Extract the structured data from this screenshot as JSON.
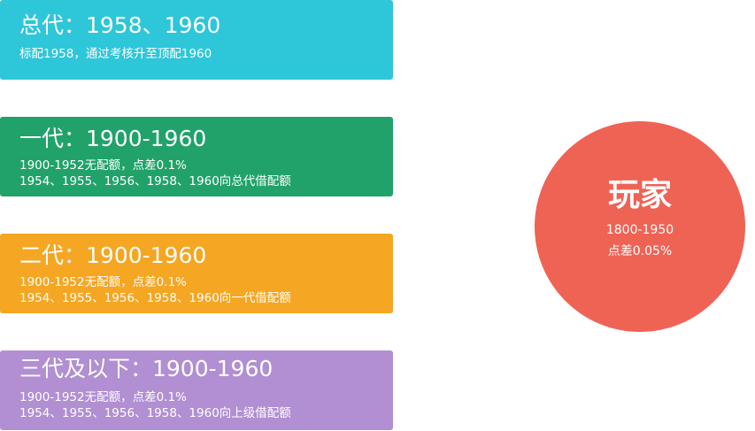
{
  "cards": [
    {
      "title": "总代：1958、1960",
      "lines": [
        "标配1958，通过考核升至顶配1960"
      ],
      "color": "#2ec6d9"
    },
    {
      "title": "一代：1900-1960",
      "lines": [
        "1900-1952无配额，点差0.1%",
        "1954、1955、1956、1958、1960向总代借配额"
      ],
      "color": "#21a26a"
    },
    {
      "title": "二代：1900-1960",
      "lines": [
        "1900-1952无配额，点差0.1%",
        "1954、1955、1956、1958、1960向一代借配额"
      ],
      "color": "#f5a623"
    },
    {
      "title": "三代及以下：1900-1960",
      "lines": [
        "1900-1952无配额，点差0.1%",
        "1954、1955、1956、1958、1960向上级借配额"
      ],
      "color": "#b18fd2"
    }
  ],
  "player": {
    "title": "玩家",
    "lines": [
      "1800-1950",
      "点差0.05%"
    ],
    "color": "#ef6355"
  }
}
